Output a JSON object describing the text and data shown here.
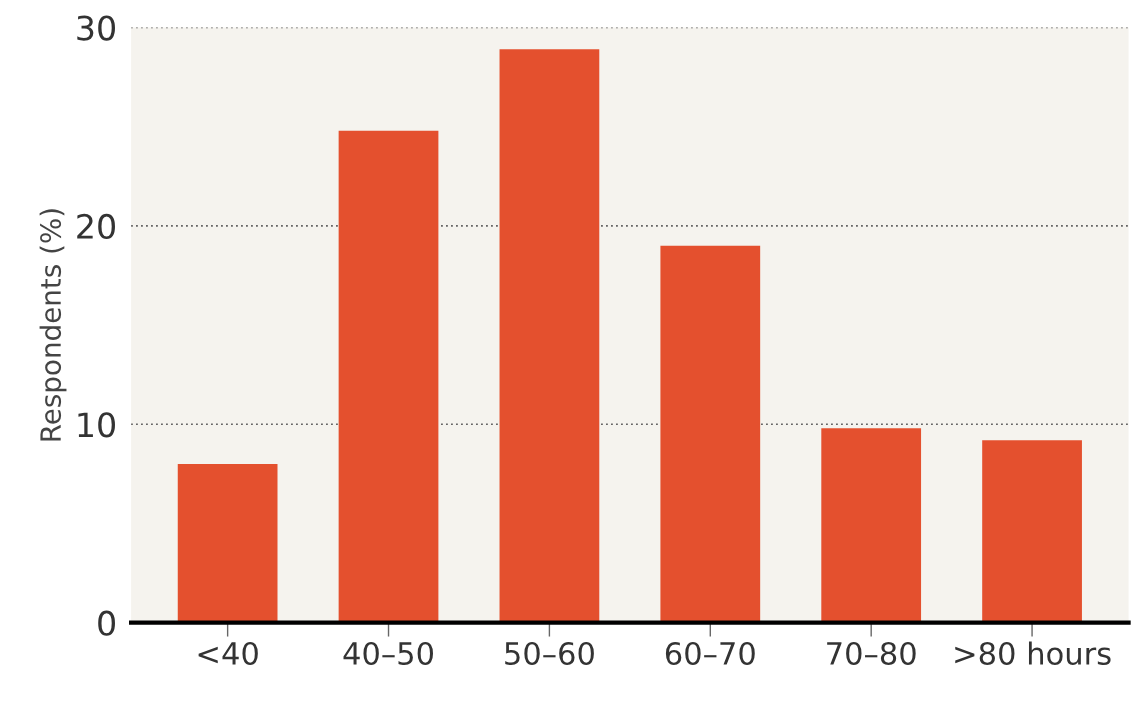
{
  "chart_data": {
    "type": "bar",
    "ylabel": "Respondents (%)",
    "categories": [
      "<40",
      "40–50",
      "50–60",
      "60–70",
      "70–80",
      ">80 hours"
    ],
    "values": [
      8,
      24.8,
      28.9,
      19.0,
      9.8,
      9.2
    ],
    "color": "#e4502e",
    "ylim": [
      0,
      30
    ],
    "yticks": [
      0,
      10,
      20,
      30
    ],
    "grid": "y"
  }
}
